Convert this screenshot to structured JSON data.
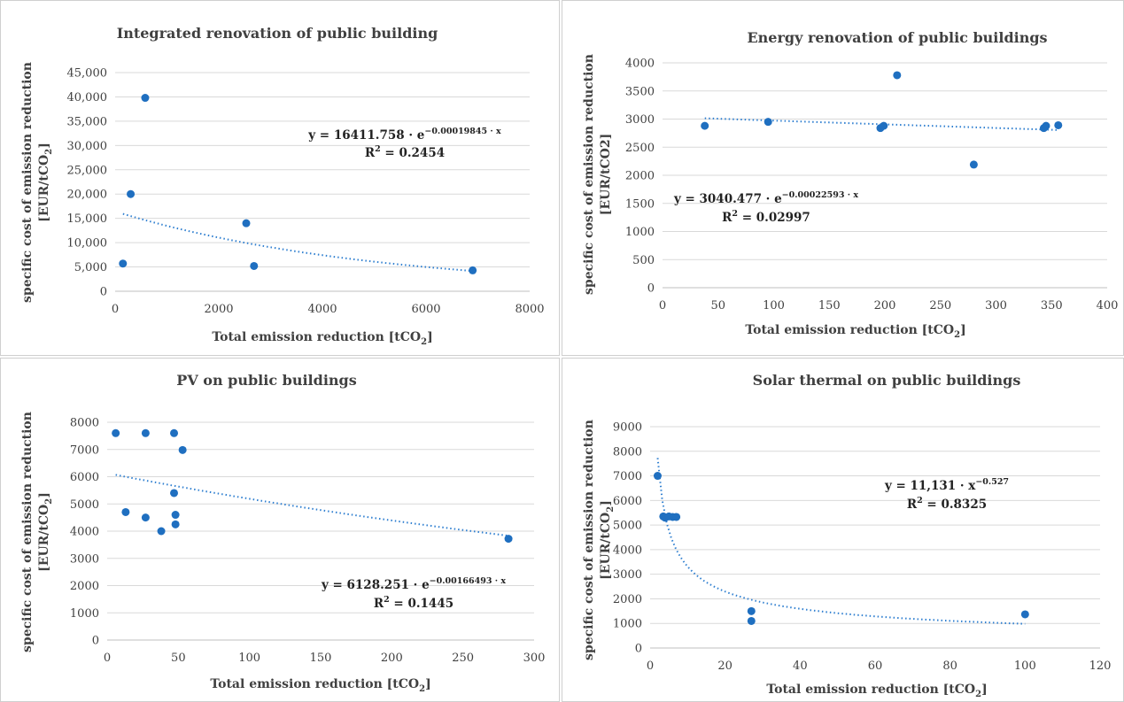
{
  "chart_data": [
    {
      "type": "scatter",
      "title": "Integrated renovation of public building",
      "xlabel": "Total emission reduction [tCO",
      "xlabel_sub": "2",
      "xlabel_end": "]",
      "ylabel_line1": "specific cost of emission reduction",
      "ylabel_line2": "[EUR/tCO",
      "ylabel_sub": "2",
      "ylabel_end": "]",
      "xlim": [
        0,
        8000
      ],
      "ylim": [
        0,
        45000
      ],
      "xticks": [
        0,
        2000,
        4000,
        6000,
        8000
      ],
      "yticks": [
        0,
        5000,
        10000,
        15000,
        20000,
        25000,
        30000,
        35000,
        40000,
        45000
      ],
      "xtick_labels": [
        "0",
        "2000",
        "4000",
        "6000",
        "8000"
      ],
      "ytick_labels": [
        "0",
        "5,000",
        "10,000",
        "15,000",
        "20,000",
        "25,000",
        "30,000",
        "35,000",
        "40,000",
        "45,000"
      ],
      "points": [
        [
          150,
          5700
        ],
        [
          300,
          20000
        ],
        [
          580,
          39800
        ],
        [
          2530,
          14000
        ],
        [
          2680,
          5200
        ],
        [
          6900,
          4300
        ]
      ],
      "trendline": {
        "model": "exp",
        "a": 16411.758,
        "b": -0.00019845,
        "x_range": [
          150,
          6900
        ]
      },
      "equation_line1": "y = 16411.758 · e",
      "equation_sup": "−0.00019845 · x",
      "r2_label": "R",
      "r2_sup": "2",
      "r2_value": " = 0.2454"
    },
    {
      "type": "scatter",
      "title": "Energy renovation of public buildings",
      "xlabel": "Total emission reduction [tCO",
      "xlabel_sub": "2",
      "xlabel_end": "]",
      "ylabel_line1": "specific cost of emission reduction",
      "ylabel_line2": "[EUR/tCO2]",
      "xlim": [
        0,
        400
      ],
      "ylim": [
        0,
        4000
      ],
      "xticks": [
        0,
        50,
        100,
        150,
        200,
        250,
        300,
        350,
        400
      ],
      "yticks": [
        0,
        500,
        1000,
        1500,
        2000,
        2500,
        3000,
        3500,
        4000
      ],
      "xtick_labels": [
        "0",
        "50",
        "100",
        "150",
        "200",
        "250",
        "300",
        "350",
        "400"
      ],
      "ytick_labels": [
        "0",
        "500",
        "1000",
        "1500",
        "2000",
        "2500",
        "3000",
        "3500",
        "4000"
      ],
      "points": [
        [
          38,
          2880
        ],
        [
          95,
          2950
        ],
        [
          196,
          2840
        ],
        [
          199,
          2880
        ],
        [
          211,
          3780
        ],
        [
          280,
          2190
        ],
        [
          343,
          2840
        ],
        [
          345,
          2880
        ],
        [
          356,
          2890
        ]
      ],
      "trendline": {
        "model": "exp",
        "a": 3040.477,
        "b": -0.00022593,
        "x_range": [
          38,
          356
        ]
      },
      "equation_line1": "y = 3040.477 · e",
      "equation_sup": "−0.00022593 · x",
      "r2_label": "R",
      "r2_sup": "2",
      "r2_value": " = 0.02997"
    },
    {
      "type": "scatter",
      "title": "PV on public buildings",
      "xlabel": "Total emission reduction [tCO",
      "xlabel_sub": "2",
      "xlabel_end": "]",
      "ylabel_line1": "specific cost of emission reduction",
      "ylabel_line2": "[EUR/tCO",
      "ylabel_sub": "2",
      "ylabel_end": "]",
      "xlim": [
        0,
        300
      ],
      "ylim": [
        0,
        8000
      ],
      "xticks": [
        0,
        50,
        100,
        150,
        200,
        250,
        300
      ],
      "yticks": [
        0,
        1000,
        2000,
        3000,
        4000,
        5000,
        6000,
        7000,
        8000
      ],
      "xtick_labels": [
        "0",
        "50",
        "100",
        "150",
        "200",
        "250",
        "300"
      ],
      "ytick_labels": [
        "0",
        "1000",
        "2000",
        "3000",
        "4000",
        "5000",
        "6000",
        "7000",
        "8000"
      ],
      "points": [
        [
          6,
          7600
        ],
        [
          13,
          4700
        ],
        [
          27,
          7600
        ],
        [
          27,
          4500
        ],
        [
          38,
          4000
        ],
        [
          47,
          7600
        ],
        [
          47,
          5400
        ],
        [
          48,
          4600
        ],
        [
          48,
          4250
        ],
        [
          53,
          6980
        ],
        [
          282,
          3720
        ]
      ],
      "trendline": {
        "model": "exp",
        "a": 6128.251,
        "b": -0.00166493,
        "x_range": [
          6,
          282
        ]
      },
      "equation_line1": "y = 6128.251 · e",
      "equation_sup": "−0.00166493 · x",
      "r2_label": "R",
      "r2_sup": "2",
      "r2_value": " = 0.1445"
    },
    {
      "type": "scatter",
      "title": "Solar thermal on public buildings",
      "xlabel": "Total emission reduction [tCO",
      "xlabel_sub": "2",
      "xlabel_end": "]",
      "ylabel_line1": "specific cost of emission reduction",
      "ylabel_line2": "[EUR/tCO",
      "ylabel_sub": "2",
      "ylabel_end": "]",
      "xlim": [
        0,
        120
      ],
      "ylim": [
        0,
        9000
      ],
      "xticks": [
        0,
        20,
        40,
        60,
        80,
        100,
        120
      ],
      "yticks": [
        0,
        1000,
        2000,
        3000,
        4000,
        5000,
        6000,
        7000,
        8000,
        9000
      ],
      "xtick_labels": [
        "0",
        "20",
        "40",
        "60",
        "80",
        "100",
        "120"
      ],
      "ytick_labels": [
        "0",
        "1000",
        "2000",
        "3000",
        "4000",
        "5000",
        "6000",
        "7000",
        "8000",
        "9000"
      ],
      "points": [
        [
          2,
          7000
        ],
        [
          3.5,
          5350
        ],
        [
          4,
          5300
        ],
        [
          5,
          5350
        ],
        [
          6,
          5330
        ],
        [
          7,
          5330
        ],
        [
          27,
          1500
        ],
        [
          27,
          1100
        ],
        [
          100,
          1370
        ]
      ],
      "trendline": {
        "model": "pow",
        "a": 11131,
        "b": -0.527,
        "x_range": [
          2,
          100
        ]
      },
      "equation_line1": "y = 11,131 · x",
      "equation_sup": "−0.527",
      "r2_label": "R",
      "r2_sup": "2",
      "r2_value": " = 0.8325"
    }
  ]
}
